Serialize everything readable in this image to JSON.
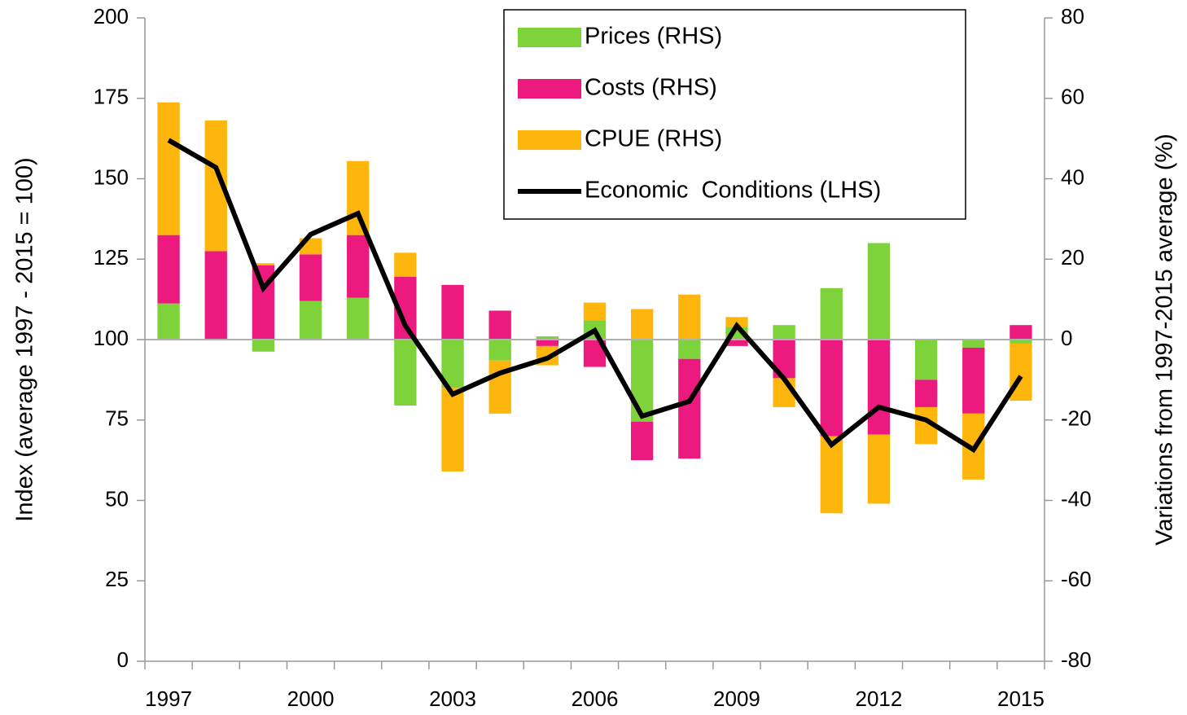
{
  "chart_data": {
    "type": "bar",
    "y_label": "Index (average 1997 - 2015 = 100)",
    "y2_label": "Variations from 1997-2015 average (%)",
    "categories": [
      "1997",
      null,
      null,
      "2000",
      null,
      null,
      "2003",
      null,
      null,
      "2006",
      null,
      null,
      "2009",
      null,
      null,
      "2012",
      null,
      null,
      "2015"
    ],
    "ylim": [
      0,
      200
    ],
    "yticks": [
      0,
      25,
      50,
      75,
      100,
      125,
      150,
      175,
      200
    ],
    "y2lim": [
      -80,
      80
    ],
    "y2ticks": [
      -80,
      -60,
      -40,
      -20,
      0,
      20,
      40,
      60,
      80
    ],
    "legend": "top-right",
    "series": [
      {
        "name": "Prices (RHS)",
        "type": "bar",
        "axis": "y2",
        "color": "#7ed23a",
        "values": [
          9,
          0,
          -3,
          9.6,
          10.4,
          -16.4,
          -12,
          -5.2,
          0.8,
          4.8,
          -20.4,
          -4.8,
          3.2,
          3.6,
          12.8,
          24,
          -10,
          -2,
          -1
        ]
      },
      {
        "name": "Costs (RHS)",
        "type": "bar",
        "axis": "y2",
        "color": "#ec1a7e",
        "values": [
          17,
          22,
          18.5,
          11.6,
          15.6,
          15.6,
          13.6,
          7.2,
          -1.6,
          -6.8,
          -9.6,
          -24.8,
          -1.6,
          -9.6,
          -24,
          -23.6,
          -6.8,
          -16.4,
          3.6
        ]
      },
      {
        "name": "CPUE (RHS)",
        "type": "bar",
        "axis": "y2",
        "color": "#ffb60c",
        "values": [
          33,
          32.5,
          0.5,
          4,
          18.4,
          6,
          -20.8,
          -13.2,
          -4.8,
          4.4,
          7.6,
          11.2,
          2.4,
          -7.2,
          -19.2,
          -17.2,
          -9.2,
          -16.4,
          -14.2
        ]
      },
      {
        "name": "Economic  Conditions (LHS)",
        "type": "line",
        "axis": "y",
        "color": "#000000",
        "values": [
          162,
          153.5,
          116,
          132.7,
          139.2,
          104.3,
          83,
          89.6,
          94.2,
          102.8,
          76.2,
          80.8,
          104.3,
          87.8,
          67.3,
          79,
          75,
          65.8,
          88.6
        ]
      }
    ]
  }
}
